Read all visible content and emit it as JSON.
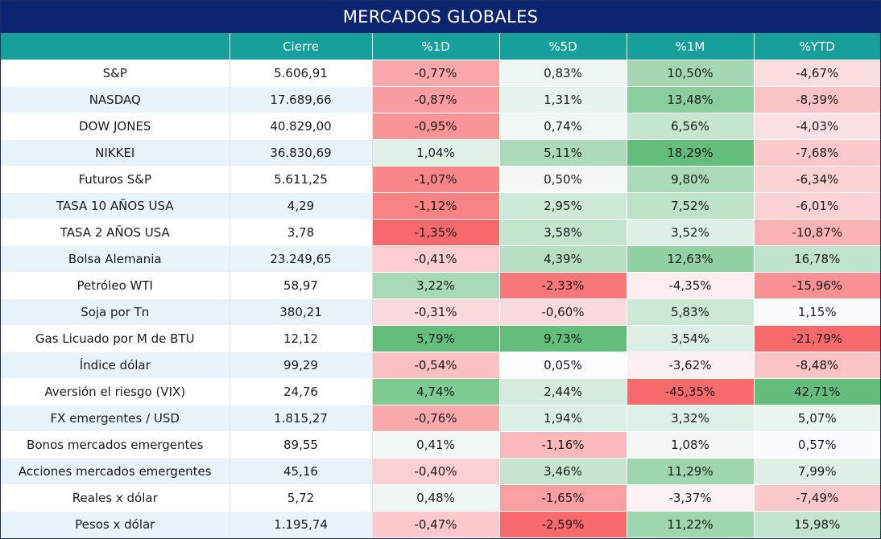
{
  "title": "MERCADOS GLOBALES",
  "columns": [
    "",
    "Cierre",
    "%1D",
    "%5D",
    "%1M",
    "%YTD"
  ],
  "rows": [
    {
      "name": "S&P",
      "cierre": "5.606,91",
      "d1": "-0,77%",
      "d5": "0,83%",
      "m1": "10,50%",
      "ytd": "-4,67%"
    },
    {
      "name": "NASDAQ",
      "cierre": "17.689,66",
      "d1": "-0,87%",
      "d5": "1,31%",
      "m1": "13,48%",
      "ytd": "-8,39%"
    },
    {
      "name": "DOW JONES",
      "cierre": "40.829,00",
      "d1": "-0,95%",
      "d5": "0,74%",
      "m1": "6,56%",
      "ytd": "-4,03%"
    },
    {
      "name": "NIKKEI",
      "cierre": "36.830,69",
      "d1": "1,04%",
      "d5": "5,11%",
      "m1": "18,29%",
      "ytd": "-7,68%"
    },
    {
      "name": "Futuros S&P",
      "cierre": "5.611,25",
      "d1": "-1,07%",
      "d5": "0,50%",
      "m1": "9,80%",
      "ytd": "-6,34%"
    },
    {
      "name": "TASA 10 AÑOS USA",
      "cierre": "4,29",
      "d1": "-1,12%",
      "d5": "2,95%",
      "m1": "7,52%",
      "ytd": "-6,01%"
    },
    {
      "name": "TASA 2 AÑOS USA",
      "cierre": "3,78",
      "d1": "-1,35%",
      "d5": "3,58%",
      "m1": "3,52%",
      "ytd": "-10,87%"
    },
    {
      "name": "Bolsa Alemania",
      "cierre": "23.249,65",
      "d1": "-0,41%",
      "d5": "4,39%",
      "m1": "12,63%",
      "ytd": "16,78%"
    },
    {
      "name": "Petróleo WTI",
      "cierre": "58,97",
      "d1": "3,22%",
      "d5": "-2,33%",
      "m1": "-4,35%",
      "ytd": "-15,96%"
    },
    {
      "name": "Soja por Tn",
      "cierre": "380,21",
      "d1": "-0,31%",
      "d5": "-0,60%",
      "m1": "5,83%",
      "ytd": "1,15%"
    },
    {
      "name": "Gas Licuado por M de BTU",
      "cierre": "12,12",
      "d1": "5,79%",
      "d5": "9,73%",
      "m1": "3,54%",
      "ytd": "-21,79%"
    },
    {
      "name": "Índice dólar",
      "cierre": "99,29",
      "d1": "-0,54%",
      "d5": "0,05%",
      "m1": "-3,62%",
      "ytd": "-8,48%"
    },
    {
      "name": "Aversión el riesgo (VIX)",
      "cierre": "24,76",
      "d1": "4,74%",
      "d5": "2,44%",
      "m1": "-45,35%",
      "ytd": "42,71%"
    },
    {
      "name": "FX emergentes / USD",
      "cierre": "1.815,27",
      "d1": "-0,76%",
      "d5": "1,94%",
      "m1": "3,32%",
      "ytd": "5,07%"
    },
    {
      "name": "Bonos mercados emergentes",
      "cierre": "89,55",
      "d1": "0,41%",
      "d5": "-1,16%",
      "m1": "1,08%",
      "ytd": "0,57%"
    },
    {
      "name": "Acciones mercados emergentes",
      "cierre": "45,16",
      "d1": "-0,40%",
      "d5": "3,46%",
      "m1": "11,29%",
      "ytd": "7,99%"
    },
    {
      "name": "Reales x dólar",
      "cierre": "5,72",
      "d1": "0,48%",
      "d5": "-1,65%",
      "m1": "-3,37%",
      "ytd": "-7,49%"
    },
    {
      "name": "Pesos x dólar",
      "cierre": "1.195,74",
      "d1": "-0,47%",
      "d5": "-2,59%",
      "m1": "11,22%",
      "ytd": "15,98%"
    }
  ],
  "colors": {
    "title_bg": "#0b2470",
    "header_bg": "#169f9b",
    "positive_max": "#63be7b",
    "negative_max": "#f8696b",
    "neutral": "#fcfcff"
  }
}
